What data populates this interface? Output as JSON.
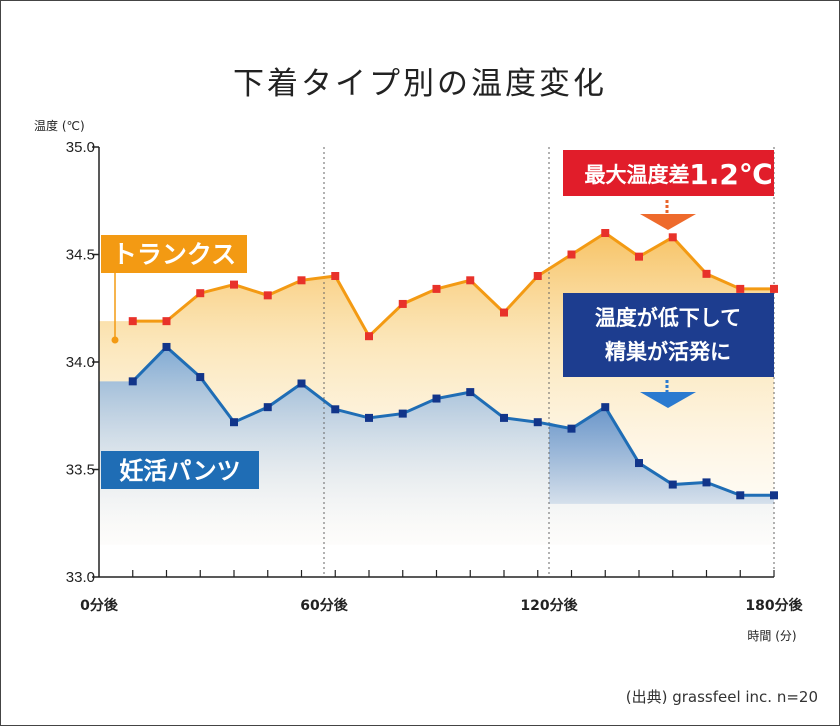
{
  "title": "下着タイプ別の温度変化",
  "source": "(出典) grassfeel inc. n=20",
  "chart_data": {
    "type": "line",
    "ylabel": "温度 (℃)",
    "xlabel": "時間 (分)",
    "ylim": [
      33.0,
      35.0
    ],
    "xlim": [
      0,
      180
    ],
    "yticks": [
      "35.0",
      "34.5",
      "34.0",
      "33.5",
      "33.0"
    ],
    "xticks": [
      {
        "value": 0,
        "label": "0分後"
      },
      {
        "value": 60,
        "label": "60分後"
      },
      {
        "value": 120,
        "label": "120分後"
      },
      {
        "value": 180,
        "label": "180分後"
      }
    ],
    "x": [
      9,
      18,
      27,
      36,
      45,
      54,
      63,
      72,
      81,
      90,
      99,
      108,
      117,
      126,
      135,
      144,
      153,
      162,
      171,
      180
    ],
    "series": [
      {
        "name": "トランクス",
        "color": "#f39a13",
        "marker_color": "#e8322a",
        "values": [
          34.19,
          34.19,
          34.32,
          34.36,
          34.31,
          34.38,
          34.4,
          34.12,
          34.27,
          34.34,
          34.38,
          34.23,
          34.4,
          34.5,
          34.6,
          34.49,
          34.58,
          34.41,
          34.34,
          34.34
        ]
      },
      {
        "name": "妊活パンツ",
        "color": "#1f6db5",
        "marker_color": "#12358a",
        "values": [
          33.91,
          34.07,
          33.93,
          33.72,
          33.79,
          33.9,
          33.78,
          33.74,
          33.76,
          33.83,
          33.86,
          33.74,
          33.72,
          33.69,
          33.79,
          33.53,
          33.43,
          33.44,
          33.38,
          33.38
        ]
      }
    ],
    "annotations": [
      {
        "text": "最大温度差",
        "value": "1.2℃"
      },
      {
        "text": "温度が低下して",
        "text2": "精巣が活発に"
      }
    ]
  }
}
